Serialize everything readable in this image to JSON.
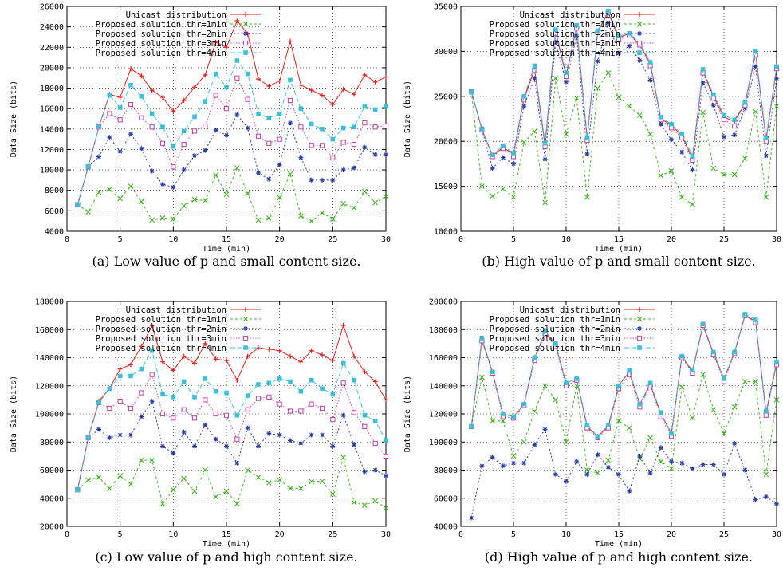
{
  "colors": {
    "unicast": "#e02020",
    "thr1": "#3fb020",
    "thr2": "#2a3ea0",
    "thr3": "#c040a8",
    "thr4": "#3cc0d8"
  },
  "chart_data": [
    {
      "type": "line",
      "caption": "(a) Low value of p and small content size.",
      "xlabel": "Time (min)",
      "ylabel": "Data Size (bits)",
      "xlim": [
        0,
        30
      ],
      "ylim": [
        4000,
        26000
      ],
      "xticks": [
        "0",
        "5",
        "10",
        "15",
        "20",
        "25",
        "30"
      ],
      "yticks": [
        "4000",
        "6000",
        "8000",
        "10000",
        "12000",
        "14000",
        "16000",
        "18000",
        "20000",
        "22000",
        "24000",
        "26000"
      ],
      "grid": true,
      "legend_position": "top-left",
      "x": [
        1,
        2,
        3,
        4,
        5,
        6,
        7,
        8,
        9,
        10,
        11,
        12,
        13,
        14,
        15,
        16,
        17,
        18,
        19,
        20,
        21,
        22,
        23,
        24,
        25,
        26,
        27,
        28,
        29,
        30
      ],
      "series": [
        {
          "name": "Unicast distribution",
          "key": "unicast",
          "values": [
            6600,
            10300,
            14200,
            17400,
            17100,
            19900,
            19200,
            17800,
            17100,
            15700,
            16800,
            18100,
            19300,
            22500,
            22000,
            24600,
            23300,
            18900,
            18200,
            18700,
            22600,
            18300,
            17800,
            17300,
            16400,
            17900,
            17400,
            19300,
            18600,
            19100
          ]
        },
        {
          "name": "Proposed solution thr=1min",
          "key": "thr1",
          "values": [
            6600,
            5900,
            7800,
            8100,
            7200,
            8400,
            6900,
            5100,
            5300,
            5200,
            6500,
            7100,
            7000,
            9500,
            7600,
            10200,
            7700,
            5100,
            5300,
            7300,
            9600,
            5500,
            5000,
            5800,
            5200,
            6700,
            6300,
            7900,
            6800,
            7400
          ]
        },
        {
          "name": "Proposed solution thr=2min",
          "key": "thr2",
          "values": [
            6600,
            10300,
            11300,
            13200,
            11800,
            13500,
            12100,
            9900,
            8600,
            8300,
            10000,
            11400,
            11900,
            13900,
            13400,
            15400,
            14100,
            9700,
            9100,
            10500,
            14600,
            11200,
            9000,
            9000,
            9000,
            10000,
            10200,
            12200,
            11500,
            11500
          ]
        },
        {
          "name": "Proposed solution thr=3min",
          "key": "thr3",
          "values": [
            6600,
            10300,
            14200,
            15500,
            14900,
            16400,
            15100,
            14200,
            12600,
            10300,
            12500,
            13800,
            14300,
            17300,
            16000,
            19000,
            16900,
            13300,
            12600,
            13000,
            16800,
            14200,
            12400,
            12400,
            11200,
            12700,
            12500,
            14600,
            14200,
            14300
          ]
        },
        {
          "name": "Proposed solution thr=4min",
          "key": "thr4",
          "values": [
            6600,
            10300,
            14200,
            17300,
            16100,
            18300,
            17200,
            15500,
            14200,
            12300,
            13800,
            15200,
            16700,
            19400,
            18100,
            20700,
            19400,
            15500,
            15100,
            15500,
            18800,
            16000,
            14500,
            14000,
            13000,
            14100,
            14200,
            16200,
            15900,
            16200
          ]
        }
      ]
    },
    {
      "type": "line",
      "caption": "(b) High value of p and small content size.",
      "xlabel": "Time (min)",
      "ylabel": "Data Size (bits)",
      "xlim": [
        0,
        30
      ],
      "ylim": [
        10000,
        35000
      ],
      "xticks": [
        "0",
        "5",
        "10",
        "15",
        "20",
        "25",
        "30"
      ],
      "yticks": [
        "10000",
        "15000",
        "20000",
        "25000",
        "30000",
        "35000"
      ],
      "grid": true,
      "legend_position": "top-left",
      "x": [
        1,
        2,
        3,
        4,
        5,
        6,
        7,
        8,
        9,
        10,
        11,
        12,
        13,
        14,
        15,
        16,
        17,
        18,
        19,
        20,
        21,
        22,
        23,
        24,
        25,
        26,
        27,
        28,
        29,
        30
      ],
      "series": [
        {
          "name": "Unicast distribution",
          "key": "unicast",
          "values": [
            25500,
            21400,
            18400,
            19300,
            18600,
            24800,
            28000,
            19600,
            32200,
            27300,
            32700,
            20300,
            32200,
            34300,
            31500,
            32000,
            30700,
            28700,
            22500,
            21800,
            20600,
            18100,
            27800,
            25000,
            22700,
            22200,
            24200,
            29800,
            20200,
            28200
          ]
        },
        {
          "name": "Proposed solution thr=1min",
          "key": "thr1",
          "values": [
            25500,
            15000,
            13900,
            14700,
            13800,
            19900,
            21100,
            13200,
            27000,
            20800,
            24800,
            13800,
            25900,
            27600,
            24900,
            23900,
            22900,
            20800,
            16200,
            16700,
            13800,
            13000,
            23200,
            17000,
            16300,
            16300,
            18100,
            23300,
            13800,
            23900
          ]
        },
        {
          "name": "Proposed solution thr=2min",
          "key": "thr2",
          "values": [
            25500,
            21300,
            17000,
            18200,
            17500,
            23900,
            27000,
            18000,
            31000,
            26600,
            31700,
            18600,
            28900,
            33200,
            29800,
            30600,
            29000,
            26800,
            21900,
            20200,
            18800,
            16800,
            26500,
            24000,
            20500,
            20700,
            23700,
            28300,
            18400,
            27000
          ]
        },
        {
          "name": "Proposed solution thr=3min",
          "key": "thr3",
          "values": [
            25500,
            21300,
            18300,
            19200,
            18300,
            24600,
            27900,
            19400,
            32000,
            27200,
            32600,
            20100,
            32100,
            34300,
            31300,
            31800,
            30700,
            28400,
            22400,
            21500,
            20400,
            17900,
            27600,
            24800,
            22400,
            21700,
            24000,
            29600,
            20000,
            28100
          ]
        },
        {
          "name": "Proposed solution thr=4min",
          "key": "thr4",
          "values": [
            25500,
            21400,
            18500,
            19500,
            18700,
            25000,
            28400,
            19800,
            32400,
            27600,
            32900,
            20400,
            32300,
            34500,
            31700,
            32000,
            30900,
            28800,
            22700,
            21900,
            20800,
            18400,
            28000,
            25200,
            22900,
            22400,
            24300,
            30000,
            20400,
            28300
          ]
        }
      ]
    },
    {
      "type": "line",
      "caption": "(c) Low value of p and high content size.",
      "xlabel": "Time (min)",
      "ylabel": "Data Size (bits)",
      "xlim": [
        0,
        30
      ],
      "ylim": [
        20000,
        180000
      ],
      "xticks": [
        "0",
        "5",
        "10",
        "15",
        "20",
        "25",
        "30"
      ],
      "yticks": [
        "20000",
        "40000",
        "60000",
        "80000",
        "100000",
        "120000",
        "140000",
        "160000",
        "180000"
      ],
      "grid": true,
      "legend_position": "top-left",
      "x": [
        1,
        2,
        3,
        4,
        5,
        6,
        7,
        8,
        9,
        10,
        11,
        12,
        13,
        14,
        15,
        16,
        17,
        18,
        19,
        20,
        21,
        22,
        23,
        24,
        25,
        26,
        27,
        28,
        29,
        30
      ],
      "series": [
        {
          "name": "Unicast distribution",
          "key": "unicast",
          "values": [
            46000,
            83000,
            109000,
            118000,
            132000,
            135000,
            148000,
            163000,
            137000,
            131000,
            141000,
            136000,
            150000,
            139000,
            138000,
            124000,
            141000,
            147000,
            146000,
            145000,
            141000,
            137000,
            145000,
            142000,
            138000,
            163000,
            141000,
            130000,
            123000,
            110000
          ]
        },
        {
          "name": "Proposed solution thr=1min",
          "key": "thr1",
          "values": [
            46000,
            53000,
            55000,
            47000,
            56000,
            50000,
            67000,
            67000,
            36000,
            46000,
            54000,
            45000,
            60000,
            41000,
            45000,
            36000,
            60000,
            55000,
            51000,
            53000,
            47000,
            47000,
            52000,
            52000,
            43000,
            69000,
            37000,
            35000,
            38000,
            33000
          ]
        },
        {
          "name": "Proposed solution thr=2min",
          "key": "thr2",
          "values": [
            46000,
            83000,
            89000,
            83000,
            85000,
            85000,
            98000,
            109000,
            77000,
            72000,
            87000,
            77000,
            92000,
            82000,
            77000,
            65000,
            90000,
            77000,
            86000,
            85000,
            81000,
            79000,
            85000,
            85000,
            77000,
            99000,
            78000,
            59000,
            60000,
            56000
          ]
        },
        {
          "name": "Proposed solution thr=3min",
          "key": "thr3",
          "values": [
            46000,
            83000,
            108000,
            104000,
            109000,
            104000,
            115000,
            128000,
            100000,
            97000,
            103000,
            97000,
            110000,
            100000,
            99000,
            82000,
            103000,
            111000,
            112000,
            107000,
            102000,
            102000,
            107000,
            104000,
            96000,
            122000,
            101000,
            91000,
            79000,
            70000
          ]
        },
        {
          "name": "Proposed solution thr=4min",
          "key": "thr4",
          "values": [
            46000,
            83000,
            108000,
            118000,
            127000,
            127000,
            132000,
            145000,
            114000,
            112000,
            123000,
            112000,
            125000,
            116000,
            115000,
            99000,
            113000,
            121000,
            122000,
            125000,
            123000,
            116000,
            124000,
            118000,
            114000,
            136000,
            124000,
            99000,
            95000,
            81000
          ]
        }
      ]
    },
    {
      "type": "line",
      "caption": "(d) High value of p and high content size.",
      "xlabel": "Time (min)",
      "ylabel": "Data Size (bits)",
      "xlim": [
        0,
        30
      ],
      "ylim": [
        40000,
        200000
      ],
      "xticks": [
        "0",
        "5",
        "10",
        "15",
        "20",
        "25",
        "30"
      ],
      "yticks": [
        "40000",
        "60000",
        "80000",
        "100000",
        "120000",
        "140000",
        "160000",
        "180000",
        "200000"
      ],
      "grid": true,
      "legend_position": "top-left",
      "x": [
        1,
        2,
        3,
        4,
        5,
        6,
        7,
        8,
        9,
        10,
        11,
        12,
        13,
        14,
        15,
        16,
        17,
        18,
        19,
        20,
        21,
        22,
        23,
        24,
        25,
        26,
        27,
        28,
        29,
        30
      ],
      "series": [
        {
          "name": "Unicast distribution",
          "key": "unicast",
          "values": [
            111000,
            173000,
            150000,
            120000,
            118000,
            127000,
            160000,
            178000,
            169000,
            142000,
            145000,
            111000,
            104000,
            111000,
            140000,
            150000,
            127000,
            141000,
            120000,
            106000,
            161000,
            150000,
            183000,
            163000,
            145000,
            164000,
            190000,
            186000,
            121000,
            156000
          ]
        },
        {
          "name": "Proposed solution thr=1min",
          "key": "thr1",
          "values": [
            111000,
            146000,
            115000,
            115000,
            90000,
            100000,
            122000,
            140000,
            130000,
            100000,
            140000,
            80000,
            78000,
            87000,
            115000,
            110000,
            88000,
            103000,
            86000,
            81000,
            139000,
            117000,
            148000,
            123000,
            106000,
            125000,
            143000,
            143000,
            77000,
            130000
          ]
        },
        {
          "name": "Proposed solution thr=2min",
          "key": "thr2",
          "values": [
            46000,
            83000,
            89000,
            83000,
            85000,
            85000,
            98000,
            109000,
            77000,
            72000,
            86000,
            77000,
            91000,
            82000,
            77000,
            65000,
            90000,
            78000,
            96000,
            86000,
            85000,
            81000,
            84000,
            84000,
            77000,
            99000,
            80000,
            59000,
            61000,
            56000
          ]
        },
        {
          "name": "Proposed solution thr=3min",
          "key": "thr3",
          "values": [
            111000,
            172000,
            149000,
            118000,
            117000,
            126000,
            158000,
            177000,
            168000,
            140000,
            144000,
            110000,
            103000,
            110000,
            138000,
            148000,
            125000,
            140000,
            118000,
            104000,
            160000,
            149000,
            183000,
            162000,
            143000,
            163000,
            190000,
            185000,
            119000,
            155000
          ]
        },
        {
          "name": "Proposed solution thr=4min",
          "key": "thr4",
          "values": [
            111000,
            174000,
            150000,
            120000,
            118000,
            127000,
            160000,
            179000,
            170000,
            142000,
            145000,
            112000,
            104000,
            112000,
            140000,
            151000,
            127000,
            142000,
            121000,
            106000,
            161000,
            151000,
            184000,
            164000,
            145000,
            164000,
            191000,
            187000,
            122000,
            157000
          ]
        }
      ]
    }
  ]
}
